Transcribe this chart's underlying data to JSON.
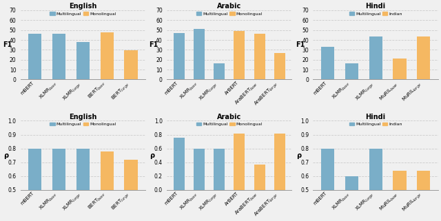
{
  "panels": [
    {
      "title": "English",
      "ylabel": "F1",
      "ylim": [
        0,
        70
      ],
      "yticks": [
        0,
        10,
        20,
        30,
        40,
        50,
        60,
        70
      ],
      "legend_label1": "Multilingual",
      "legend_label2": "Monolingual",
      "bars": [
        {
          "label": "mBERT",
          "value": 46,
          "color": "#7aaec8"
        },
        {
          "label": "XLMR$_{base}$",
          "value": 46.5,
          "color": "#7aaec8"
        },
        {
          "label": "XLMR$_{large}$",
          "value": 38,
          "color": "#7aaec8"
        },
        {
          "label": "BERT$_{base}$",
          "value": 47.5,
          "color": "#f5b862"
        },
        {
          "label": "BERT$_{large}$",
          "value": 29.5,
          "color": "#f5b862"
        }
      ]
    },
    {
      "title": "Arabic",
      "ylabel": "F1",
      "ylim": [
        0,
        70
      ],
      "yticks": [
        0,
        10,
        20,
        30,
        40,
        50,
        60,
        70
      ],
      "legend_label1": "Multilingual",
      "legend_label2": "Monolingual",
      "bars": [
        {
          "label": "mBERT",
          "value": 47,
          "color": "#7aaec8"
        },
        {
          "label": "XLMR$_{base}$",
          "value": 51,
          "color": "#7aaec8"
        },
        {
          "label": "XLMR$_{large}$",
          "value": 16,
          "color": "#7aaec8"
        },
        {
          "label": "ArBERT",
          "value": 49,
          "color": "#f5b862"
        },
        {
          "label": "AraBERT$_{base}$",
          "value": 46,
          "color": "#f5b862"
        },
        {
          "label": "AraBERT$_{large}$",
          "value": 27,
          "color": "#f5b862"
        }
      ]
    },
    {
      "title": "Hindi",
      "ylabel": "F1",
      "ylim": [
        0,
        70
      ],
      "yticks": [
        0,
        10,
        20,
        30,
        40,
        50,
        60,
        70
      ],
      "legend_label1": "Multilingual",
      "legend_label2": "Indian",
      "bars": [
        {
          "label": "mBERT",
          "value": 33,
          "color": "#7aaec8"
        },
        {
          "label": "XLMR$_{base}$",
          "value": 16.5,
          "color": "#7aaec8"
        },
        {
          "label": "XLMR$_{large}$",
          "value": 43.5,
          "color": "#7aaec8"
        },
        {
          "label": "MuRIL$_{base}$",
          "value": 21.5,
          "color": "#f5b862"
        },
        {
          "label": "MuRIL$_{large}$",
          "value": 43.5,
          "color": "#f5b862"
        }
      ]
    },
    {
      "title": "English",
      "ylabel": "ρ",
      "ylim": [
        0.5,
        1.0
      ],
      "yticks": [
        0.5,
        0.6,
        0.7,
        0.8,
        0.9,
        1.0
      ],
      "legend_label1": "Multilingual",
      "legend_label2": "Monolingual",
      "bars": [
        {
          "label": "mBERT",
          "value": 0.8,
          "color": "#7aaec8"
        },
        {
          "label": "XLMR$_{base}$",
          "value": 0.8,
          "color": "#7aaec8"
        },
        {
          "label": "XLMR$_{large}$",
          "value": 0.8,
          "color": "#7aaec8"
        },
        {
          "label": "BERT$_{base}$",
          "value": 0.78,
          "color": "#f5b862"
        },
        {
          "label": "BERT$_{large}$",
          "value": 0.72,
          "color": "#f5b862"
        }
      ]
    },
    {
      "title": "Arabic",
      "ylabel": "ρ",
      "ylim": [
        0,
        1.0
      ],
      "yticks": [
        0.0,
        0.2,
        0.4,
        0.6,
        0.8,
        1.0
      ],
      "legend_label1": "Multilingual",
      "legend_label2": "Monolingual",
      "bars": [
        {
          "label": "mBERT",
          "value": 0.76,
          "color": "#7aaec8"
        },
        {
          "label": "XLMR$_{base}$",
          "value": 0.6,
          "color": "#7aaec8"
        },
        {
          "label": "XLMR$_{large}$",
          "value": 0.6,
          "color": "#7aaec8"
        },
        {
          "label": "ArBERT",
          "value": 0.82,
          "color": "#f5b862"
        },
        {
          "label": "AraBERT$_{base}$",
          "value": 0.37,
          "color": "#f5b862"
        },
        {
          "label": "AraBERT$_{large}$",
          "value": 0.82,
          "color": "#f5b862"
        }
      ]
    },
    {
      "title": "Hindi",
      "ylabel": "ρ",
      "ylim": [
        0.5,
        1.0
      ],
      "yticks": [
        0.5,
        0.6,
        0.7,
        0.8,
        0.9,
        1.0
      ],
      "legend_label1": "Multilingual",
      "legend_label2": "Indian",
      "bars": [
        {
          "label": "mBERT",
          "value": 0.8,
          "color": "#7aaec8"
        },
        {
          "label": "XLMR$_{base}$",
          "value": 0.6,
          "color": "#7aaec8"
        },
        {
          "label": "XLMR$_{large}$",
          "value": 0.8,
          "color": "#7aaec8"
        },
        {
          "label": "MuRIL$_{base}$",
          "value": 0.64,
          "color": "#f5b862"
        },
        {
          "label": "MuRIL$_{large}$",
          "value": 0.64,
          "color": "#f5b862"
        }
      ]
    }
  ],
  "multi_color": "#7aaec8",
  "mono_color": "#f5b862",
  "bar_width": 0.55,
  "grid_color": "#cccccc",
  "bg_color": "#f0f0f0"
}
